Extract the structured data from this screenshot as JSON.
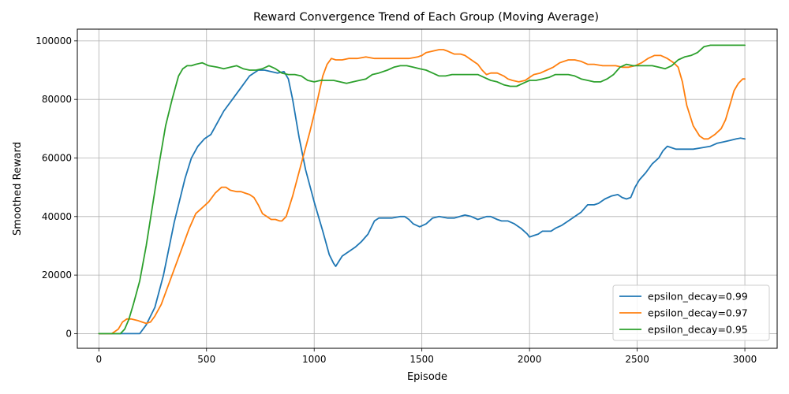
{
  "chart_data": {
    "type": "line",
    "title": "Reward Convergence Trend of Each Group (Moving Average)",
    "xlabel": "Episode",
    "ylabel": "Smoothed Reward",
    "xlim": [
      -100,
      3150
    ],
    "ylim": [
      -5000,
      104000
    ],
    "xticks": [
      0,
      500,
      1000,
      1500,
      2000,
      2500,
      3000
    ],
    "yticks": [
      0,
      20000,
      40000,
      60000,
      80000,
      100000
    ],
    "grid": true,
    "legend_position": "lower-right",
    "series": [
      {
        "name": "epsilon_decay=0.99",
        "color": "#1f77b4",
        "x": [
          0,
          100,
          190,
          220,
          260,
          300,
          350,
          400,
          430,
          460,
          490,
          520,
          550,
          580,
          620,
          660,
          700,
          740,
          770,
          800,
          830,
          860,
          880,
          900,
          930,
          960,
          1000,
          1040,
          1070,
          1090,
          1100,
          1130,
          1160,
          1190,
          1220,
          1250,
          1280,
          1300,
          1320,
          1360,
          1400,
          1420,
          1440,
          1460,
          1490,
          1520,
          1550,
          1580,
          1620,
          1650,
          1700,
          1730,
          1760,
          1780,
          1800,
          1820,
          1850,
          1870,
          1900,
          1930,
          1960,
          1990,
          2000,
          2020,
          2040,
          2060,
          2080,
          2100,
          2120,
          2150,
          2180,
          2210,
          2240,
          2270,
          2300,
          2320,
          2350,
          2380,
          2410,
          2430,
          2450,
          2470,
          2490,
          2510,
          2540,
          2570,
          2600,
          2620,
          2640,
          2660,
          2680,
          2700,
          2730,
          2760,
          2800,
          2840,
          2870,
          2900,
          2930,
          2960,
          2980,
          3000
        ],
        "y": [
          0,
          0,
          0,
          3000,
          9000,
          20000,
          38000,
          53000,
          60000,
          64000,
          66500,
          68000,
          72000,
          76000,
          80000,
          84000,
          88000,
          90000,
          90000,
          89500,
          89000,
          89500,
          87000,
          80000,
          67000,
          56000,
          45000,
          35000,
          27000,
          24000,
          23000,
          26500,
          28000,
          29500,
          31500,
          34000,
          38500,
          39500,
          39500,
          39500,
          40000,
          40000,
          39000,
          37500,
          36500,
          37500,
          39500,
          40000,
          39500,
          39500,
          40500,
          40000,
          39000,
          39500,
          40000,
          40000,
          39000,
          38500,
          38500,
          37500,
          36000,
          34000,
          33000,
          33500,
          34000,
          35000,
          35000,
          35000,
          36000,
          37000,
          38500,
          40000,
          41500,
          44000,
          44000,
          44500,
          46000,
          47000,
          47500,
          46500,
          46000,
          46500,
          50000,
          52500,
          55000,
          58000,
          60000,
          62500,
          64000,
          63500,
          63000,
          63000,
          63000,
          63000,
          63500,
          64000,
          65000,
          65500,
          66000,
          66500,
          66800,
          66500
        ]
      },
      {
        "name": "epsilon_decay=0.97",
        "color": "#ff7f0e",
        "x": [
          0,
          60,
          90,
          110,
          130,
          150,
          180,
          200,
          220,
          240,
          260,
          290,
          320,
          350,
          380,
          420,
          450,
          480,
          510,
          540,
          570,
          590,
          610,
          640,
          660,
          680,
          700,
          720,
          740,
          760,
          780,
          800,
          820,
          840,
          850,
          870,
          900,
          940,
          980,
          1010,
          1040,
          1060,
          1080,
          1100,
          1130,
          1160,
          1200,
          1240,
          1280,
          1320,
          1360,
          1400,
          1440,
          1480,
          1500,
          1520,
          1550,
          1580,
          1600,
          1620,
          1650,
          1680,
          1700,
          1730,
          1760,
          1780,
          1800,
          1820,
          1850,
          1880,
          1900,
          1920,
          1950,
          1980,
          2000,
          2020,
          2050,
          2080,
          2110,
          2140,
          2180,
          2210,
          2240,
          2270,
          2300,
          2340,
          2380,
          2400,
          2430,
          2460,
          2490,
          2520,
          2550,
          2580,
          2610,
          2640,
          2670,
          2690,
          2710,
          2730,
          2760,
          2790,
          2810,
          2830,
          2860,
          2890,
          2910,
          2930,
          2950,
          2970,
          2990,
          3000
        ],
        "y": [
          0,
          0,
          1500,
          4000,
          5000,
          5000,
          4500,
          4000,
          3500,
          4000,
          6000,
          10000,
          16000,
          22000,
          28000,
          36000,
          41000,
          43000,
          45000,
          48000,
          50000,
          50000,
          49000,
          48500,
          48500,
          48000,
          47500,
          46500,
          44000,
          41000,
          40000,
          39000,
          39000,
          38500,
          38500,
          40000,
          47000,
          58000,
          69000,
          78000,
          88000,
          92000,
          94000,
          93500,
          93500,
          94000,
          94000,
          94500,
          94000,
          94000,
          94000,
          94000,
          94000,
          94500,
          95000,
          96000,
          96500,
          97000,
          97000,
          96500,
          95500,
          95500,
          95000,
          93500,
          92000,
          90000,
          88500,
          89000,
          89000,
          88000,
          87000,
          86500,
          86000,
          86500,
          87500,
          88500,
          89000,
          90000,
          91000,
          92500,
          93500,
          93500,
          93000,
          92000,
          92000,
          91500,
          91500,
          91500,
          91000,
          91000,
          91500,
          92500,
          94000,
          95000,
          95000,
          94000,
          92500,
          91000,
          86000,
          78000,
          71000,
          67500,
          66500,
          66500,
          68000,
          70000,
          73000,
          78000,
          83000,
          85500,
          87000,
          87000
        ]
      },
      {
        "name": "epsilon_decay=0.95",
        "color": "#2ca02c",
        "x": [
          0,
          100,
          120,
          140,
          160,
          190,
          220,
          250,
          280,
          310,
          340,
          370,
          390,
          410,
          430,
          450,
          480,
          510,
          550,
          580,
          610,
          640,
          670,
          700,
          730,
          760,
          790,
          820,
          850,
          880,
          910,
          940,
          970,
          1000,
          1030,
          1060,
          1090,
          1120,
          1150,
          1180,
          1210,
          1240,
          1270,
          1300,
          1340,
          1370,
          1400,
          1430,
          1460,
          1490,
          1520,
          1550,
          1580,
          1610,
          1640,
          1670,
          1700,
          1730,
          1760,
          1790,
          1820,
          1850,
          1880,
          1910,
          1940,
          1970,
          2000,
          2030,
          2060,
          2090,
          2120,
          2150,
          2180,
          2210,
          2240,
          2270,
          2300,
          2330,
          2360,
          2390,
          2420,
          2450,
          2480,
          2510,
          2540,
          2570,
          2600,
          2630,
          2660,
          2690,
          2720,
          2750,
          2780,
          2810,
          2840,
          2870,
          2900,
          2930,
          2960,
          3000
        ],
        "y": [
          0,
          0,
          1500,
          5000,
          10000,
          18000,
          30000,
          44000,
          58000,
          71000,
          80000,
          88000,
          90500,
          91500,
          91500,
          92000,
          92500,
          91500,
          91000,
          90500,
          91000,
          91500,
          90500,
          90000,
          90000,
          90500,
          91500,
          90500,
          89000,
          88500,
          88500,
          88000,
          86500,
          86000,
          86500,
          86500,
          86500,
          86000,
          85500,
          86000,
          86500,
          87000,
          88500,
          89000,
          90000,
          91000,
          91500,
          91500,
          91000,
          90500,
          90000,
          89000,
          88000,
          88000,
          88500,
          88500,
          88500,
          88500,
          88500,
          87500,
          86500,
          86000,
          85000,
          84500,
          84500,
          85500,
          86500,
          86500,
          87000,
          87500,
          88500,
          88500,
          88500,
          88000,
          87000,
          86500,
          86000,
          86000,
          87000,
          88500,
          91000,
          92000,
          91500,
          91500,
          91500,
          91500,
          91000,
          90500,
          91500,
          93500,
          94500,
          95000,
          96000,
          98000,
          98500,
          98500,
          98500,
          98500,
          98500,
          98500
        ]
      }
    ]
  }
}
